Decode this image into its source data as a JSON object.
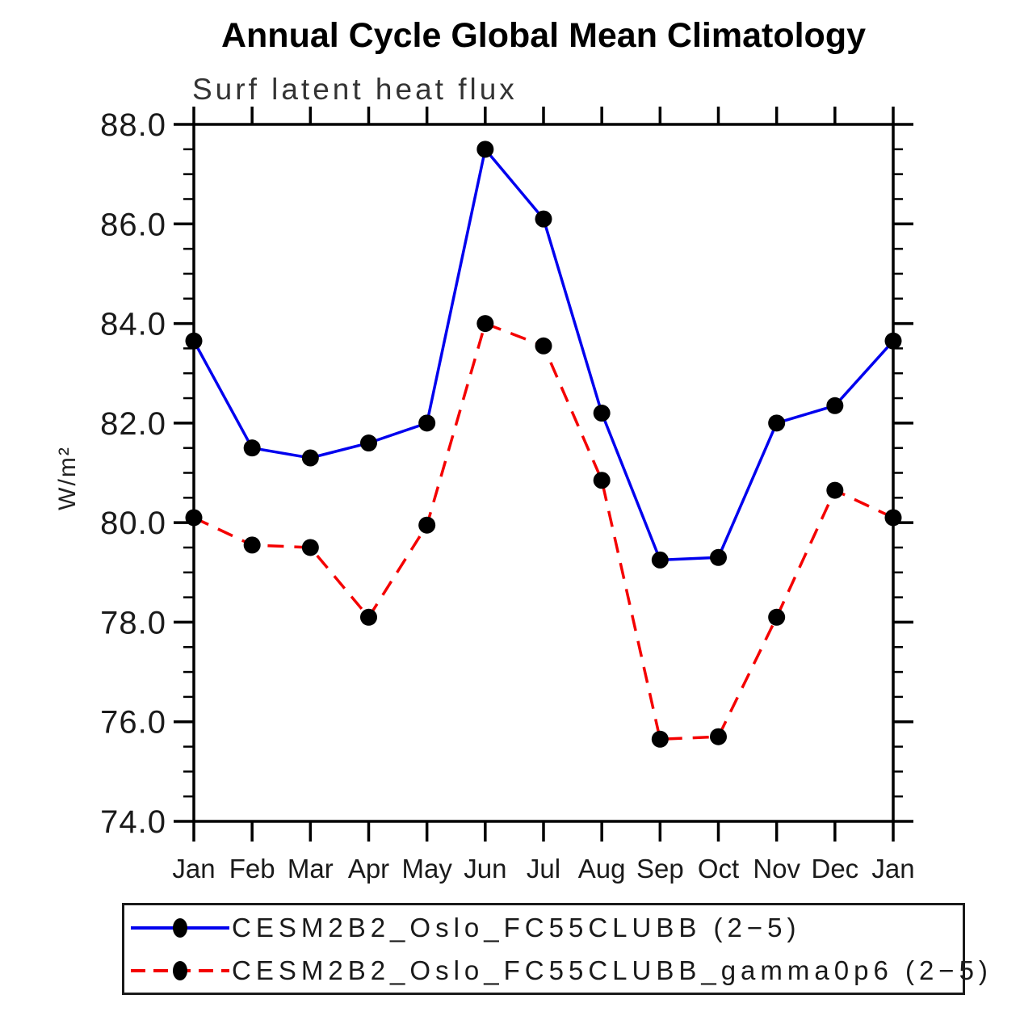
{
  "title": "Annual Cycle Global Mean Climatology",
  "subtitle": "Surf latent heat flux",
  "chart_data": {
    "type": "line",
    "categories": [
      "Jan",
      "Feb",
      "Mar",
      "Apr",
      "May",
      "Jun",
      "Jul",
      "Aug",
      "Sep",
      "Oct",
      "Nov",
      "Dec",
      "Jan"
    ],
    "series": [
      {
        "name": "CESM2B2_Oslo_FC55CLUBB (2−5)",
        "color": "#0000ee",
        "line_style": "solid",
        "marker": "filled-circle",
        "marker_color": "#000000",
        "values": [
          83.65,
          81.5,
          81.3,
          81.6,
          82.0,
          87.5,
          86.1,
          82.2,
          79.25,
          79.3,
          82.0,
          82.35,
          83.65
        ]
      },
      {
        "name": "CESM2B2_Oslo_FC55CLUBB_gamma0p6 (2−5)",
        "color": "#f40000",
        "line_style": "dashed",
        "marker": "filled-circle",
        "marker_color": "#000000",
        "values": [
          80.1,
          79.55,
          79.5,
          78.1,
          79.95,
          84.0,
          83.55,
          80.85,
          75.65,
          75.7,
          78.1,
          80.65,
          80.1
        ]
      }
    ],
    "xlabel": "",
    "ylabel": "W/m²",
    "ylim": [
      74.0,
      88.0
    ],
    "y_major_step": 2.0,
    "y_minor_step": 0.5,
    "y_tick_labels": [
      "74.0",
      "76.0",
      "78.0",
      "80.0",
      "82.0",
      "84.0",
      "86.0",
      "88.0"
    ],
    "grid": false,
    "frame": true,
    "tick_direction": "out",
    "legend_position": "bottom-box",
    "axis_color": "#000000",
    "tick_label_color": "#1a1a1a"
  }
}
